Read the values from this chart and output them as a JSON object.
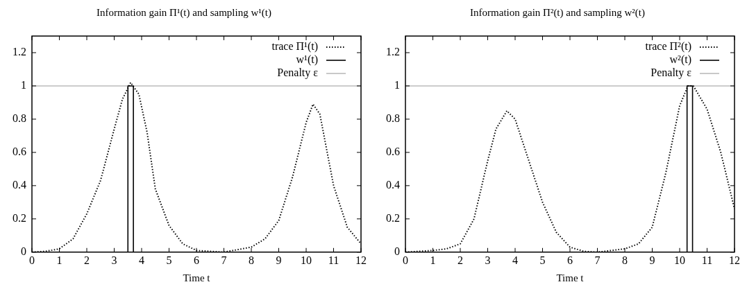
{
  "chart_data": [
    {
      "type": "line",
      "title": "Information gain Π¹(t) and sampling w¹(t)",
      "xlabel": "Time t",
      "xlim": [
        0,
        12
      ],
      "xticks": [
        0,
        1,
        2,
        3,
        4,
        5,
        6,
        7,
        8,
        9,
        10,
        11,
        12
      ],
      "ylim": [
        0,
        1.3
      ],
      "yticks": [
        0,
        0.2,
        0.4,
        0.6,
        0.8,
        1,
        1.2
      ],
      "grid": false,
      "legend": "top right",
      "marker": "none",
      "series": [
        {
          "name": "trace Π¹(t)",
          "color": "#000000",
          "line_style": "dotted",
          "x": [
            0,
            0.5,
            1,
            1.5,
            2,
            2.5,
            3,
            3.3,
            3.6,
            3.9,
            4.2,
            4.5,
            5,
            5.5,
            6,
            7,
            8,
            8.5,
            9,
            9.5,
            10,
            10.25,
            10.5,
            11,
            11.5,
            12
          ],
          "values": [
            0,
            0.005,
            0.02,
            0.08,
            0.23,
            0.43,
            0.74,
            0.92,
            1.02,
            0.95,
            0.72,
            0.38,
            0.16,
            0.05,
            0.01,
            0,
            0.03,
            0.08,
            0.19,
            0.45,
            0.78,
            0.89,
            0.83,
            0.4,
            0.15,
            0.05
          ]
        },
        {
          "name": "w¹(t)",
          "color": "#000000",
          "line_style": "solid",
          "x": [
            0,
            3.5,
            3.5,
            3.7,
            3.7,
            12
          ],
          "values": [
            0,
            0,
            1,
            1,
            0,
            0
          ]
        }
      ],
      "ref_lines": [
        {
          "axis": "y",
          "value": 1,
          "label": "Penalty ε",
          "color": "#bbbbbb"
        }
      ]
    },
    {
      "type": "line",
      "title": "Information gain Π²(t) and sampling w²(t)",
      "xlabel": "Time t",
      "xlim": [
        0,
        12
      ],
      "xticks": [
        0,
        1,
        2,
        3,
        4,
        5,
        6,
        7,
        8,
        9,
        10,
        11,
        12
      ],
      "ylim": [
        0,
        1.3
      ],
      "yticks": [
        0,
        0.2,
        0.4,
        0.6,
        0.8,
        1,
        1.2
      ],
      "grid": false,
      "legend": "top right",
      "marker": "none",
      "series": [
        {
          "name": "trace Π²(t)",
          "color": "#000000",
          "line_style": "dotted",
          "x": [
            0,
            1,
            1.5,
            2,
            2.5,
            3,
            3.3,
            3.7,
            4,
            4.5,
            5,
            5.5,
            6,
            6.5,
            7,
            8,
            8.5,
            9,
            9.5,
            10,
            10.3,
            10.5,
            11,
            11.5,
            12
          ],
          "values": [
            0,
            0.01,
            0.02,
            0.05,
            0.2,
            0.55,
            0.74,
            0.85,
            0.8,
            0.55,
            0.3,
            0.12,
            0.03,
            0.005,
            0,
            0.02,
            0.05,
            0.15,
            0.48,
            0.88,
            1,
            1,
            0.86,
            0.6,
            0.26
          ]
        },
        {
          "name": "w²(t)",
          "color": "#000000",
          "line_style": "solid",
          "x": [
            0,
            10.27,
            10.27,
            10.47,
            10.47,
            12
          ],
          "values": [
            0,
            0,
            1,
            1,
            0,
            0
          ]
        }
      ],
      "ref_lines": [
        {
          "axis": "y",
          "value": 1,
          "label": "Penalty ε",
          "color": "#bbbbbb"
        }
      ]
    }
  ]
}
